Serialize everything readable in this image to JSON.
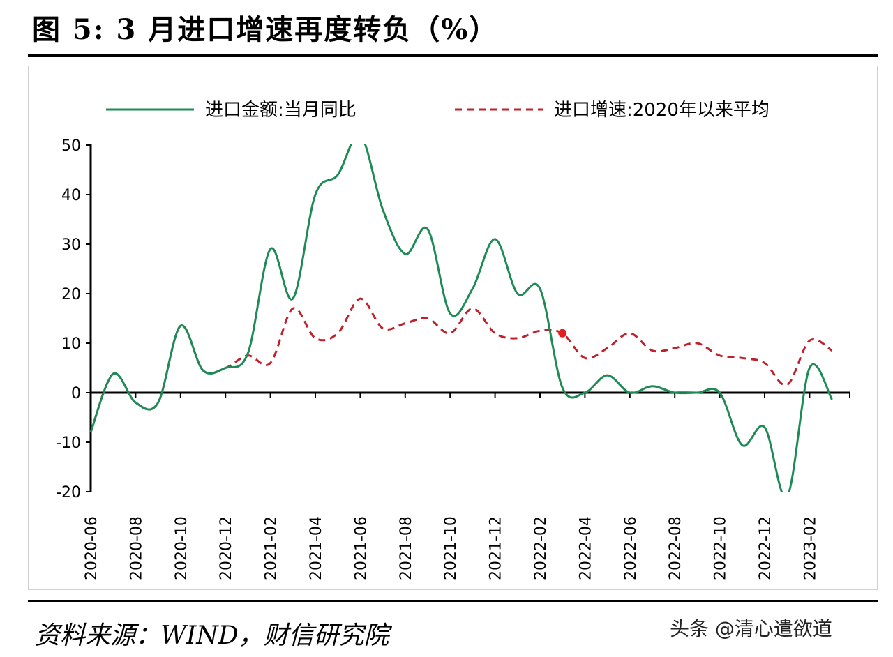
{
  "title": "图 5:  3 月进口增速再度转负（%）",
  "source": "资料来源：WIND，财信研究院",
  "watermark": "头条 @清心遣欲道",
  "chart_data": {
    "type": "line",
    "x": [
      "2020-06",
      "2020-07",
      "2020-08",
      "2020-09",
      "2020-10",
      "2020-11",
      "2020-12",
      "2021-01",
      "2021-02",
      "2021-03",
      "2021-04",
      "2021-05",
      "2021-06",
      "2021-07",
      "2021-08",
      "2021-09",
      "2021-10",
      "2021-11",
      "2021-12",
      "2022-01",
      "2022-02",
      "2022-03",
      "2022-04",
      "2022-05",
      "2022-06",
      "2022-07",
      "2022-08",
      "2022-09",
      "2022-10",
      "2022-11",
      "2022-12",
      "2023-01",
      "2023-02",
      "2023-03"
    ],
    "x_tick_labels": [
      "2020-06",
      "2020-08",
      "2020-10",
      "2020-12",
      "2021-02",
      "2021-04",
      "2021-06",
      "2021-08",
      "2021-10",
      "2021-12",
      "2022-02",
      "2022-04",
      "2022-06",
      "2022-08",
      "2022-10",
      "2022-12",
      "2023-02"
    ],
    "y_ticks": [
      -20,
      -10,
      0,
      10,
      20,
      30,
      40,
      50
    ],
    "ylim": [
      -20,
      50
    ],
    "series": [
      {
        "name": "进口金额:当月同比",
        "color": "#1e8a55",
        "style": "solid",
        "values": [
          -8,
          3.8,
          -2,
          -2,
          13.5,
          4.5,
          5,
          8,
          29,
          19,
          40,
          44,
          52,
          37,
          28,
          33,
          16,
          21,
          31,
          20,
          21,
          1,
          0,
          3.5,
          0,
          1.3,
          0,
          0,
          0,
          -10.6,
          -7,
          -21,
          5,
          -1.4
        ]
      },
      {
        "name": "进口增速:2020年以来平均",
        "color": "#c0202a",
        "style": "dashed",
        "values": [
          -8,
          3.8,
          -2,
          -2,
          13.5,
          4.5,
          5,
          7.5,
          6,
          17,
          11,
          12,
          19,
          13,
          14,
          15,
          12,
          17,
          12,
          11,
          12.5,
          12,
          7,
          9,
          12,
          8.5,
          9,
          10,
          7.5,
          7,
          6,
          1.6,
          10.5,
          8.5
        ]
      }
    ],
    "highlight_point": {
      "x": "2022-03",
      "value": 12,
      "color": "#e02020"
    }
  }
}
